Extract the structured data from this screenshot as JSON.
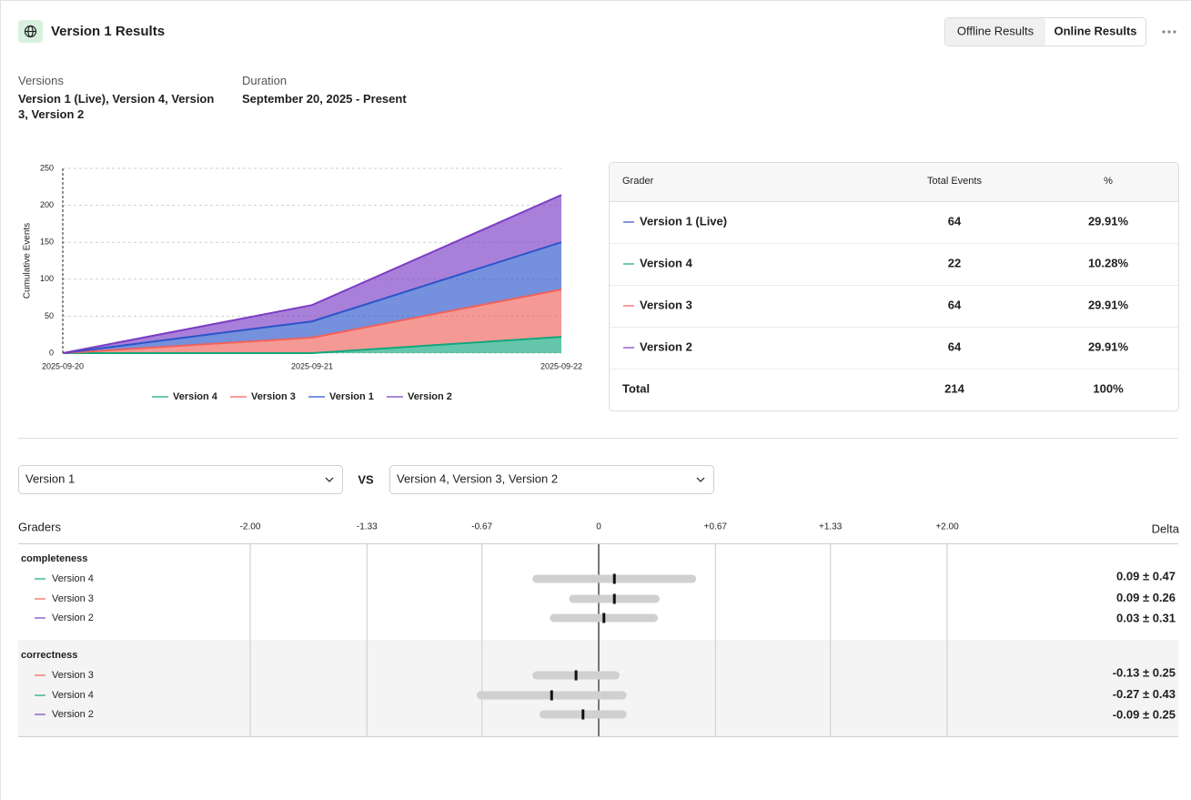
{
  "header": {
    "title": "Version 1 Results",
    "tabs": [
      "Offline Results",
      "Online Results"
    ]
  },
  "meta": {
    "versions_label": "Versions",
    "versions": "Version 1 (Live), Version 4, Version 3, Version 2",
    "duration_label": "Duration",
    "duration": "September 20, 2025 - Present"
  },
  "chart_data": [
    {
      "type": "stacked_area",
      "y_label": "Cumulative Events",
      "x": [
        "2025-09-20",
        "2025-09-21",
        "2025-09-22"
      ],
      "ylim": [
        0,
        250
      ],
      "yticks": [
        0,
        50,
        100,
        150,
        200,
        250
      ],
      "grid": true,
      "series": [
        {
          "name": "Version 4",
          "color": "#13a77e",
          "values": [
            0,
            0,
            22
          ]
        },
        {
          "name": "Version 3",
          "color": "#f0625a",
          "values": [
            0,
            21,
            64
          ]
        },
        {
          "name": "Version 1",
          "color": "#2b54c9",
          "values": [
            0,
            22,
            64
          ]
        },
        {
          "name": "Version 2",
          "color": "#7b3cc4",
          "values": [
            0,
            22,
            64
          ]
        }
      ]
    },
    {
      "type": "forest",
      "y_label": "Graders",
      "value_label": "Delta",
      "xlim": [
        -2,
        2
      ],
      "xticks": [
        {
          "value": -2,
          "label": "-2.00"
        },
        {
          "value": -1.33,
          "label": "-1.33"
        },
        {
          "value": -0.67,
          "label": "-0.67"
        },
        0,
        {
          "value": 0.67,
          "label": "+0.67"
        },
        {
          "value": 1.33,
          "label": "+1.33"
        },
        {
          "value": 2,
          "label": "+2.00"
        }
      ],
      "groups": [
        {
          "name": "completeness",
          "series": [
            {
              "name": "Version 4",
              "color": "#13a77e",
              "value": 0.09,
              "error": 0.47,
              "value_label": "0.09 ± 0.47"
            },
            {
              "name": "Version 3",
              "color": "#f0625a",
              "value": 0.09,
              "error": 0.26,
              "value_label": "0.09 ± 0.26"
            },
            {
              "name": "Version 2",
              "color": "#7b3cc4",
              "value": 0.03,
              "error": 0.31,
              "value_label": "0.03 ± 0.31"
            }
          ]
        },
        {
          "name": "correctness",
          "series": [
            {
              "name": "Version 3",
              "color": "#f0625a",
              "value": -0.13,
              "error": 0.25,
              "value_label": "-0.13 ± 0.25"
            },
            {
              "name": "Version 4",
              "color": "#13a77e",
              "value": -0.27,
              "error": 0.43,
              "value_label": "-0.27 ± 0.43"
            },
            {
              "name": "Version 2",
              "color": "#7b3cc4",
              "value": -0.09,
              "error": 0.25,
              "value_label": "-0.09 ± 0.25"
            }
          ]
        }
      ]
    }
  ],
  "table": {
    "columns": [
      "Grader",
      "Total Events",
      "%"
    ],
    "rows": [
      {
        "grader": "Version 1 (Live)",
        "color": "#2b54c9",
        "total": "64",
        "percent": "29.91%"
      },
      {
        "grader": "Version 4",
        "color": "#13a77e",
        "total": "22",
        "percent": "10.28%"
      },
      {
        "grader": "Version 3",
        "color": "#f0625a",
        "total": "64",
        "percent": "29.91%"
      },
      {
        "grader": "Version 2",
        "color": "#7b3cc4",
        "total": "64",
        "percent": "29.91%"
      }
    ],
    "total": {
      "grader": "Total",
      "total": "214",
      "percent": "100%"
    }
  },
  "compare": {
    "left": "Version 1",
    "vs": "VS",
    "right": "Version 4, Version 3, Version 2"
  }
}
